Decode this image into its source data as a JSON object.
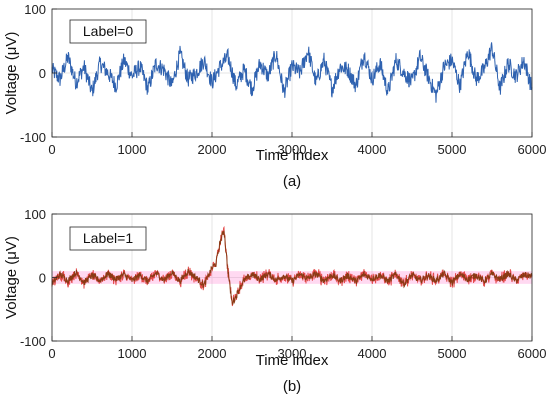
{
  "chart_data": [
    {
      "type": "line",
      "caption": "(a)",
      "legend_text": "Label=0",
      "xlabel": "Time index",
      "ylabel": "Voltage (μV)",
      "xlim": [
        0,
        6000
      ],
      "ylim": [
        -100,
        100
      ],
      "xticks": [
        0,
        1000,
        2000,
        3000,
        4000,
        5000,
        6000
      ],
      "yticks": [
        -100,
        0,
        100
      ],
      "grid": true,
      "legend_position": "top-left",
      "colors": {
        "line": "#2f62b0"
      },
      "series": [
        {
          "x": [
            0,
            100,
            200,
            300,
            400,
            500,
            600,
            700,
            800,
            900,
            1000,
            1100,
            1200,
            1300,
            1400,
            1500,
            1600,
            1700,
            1800,
            1900,
            2000,
            2100,
            2200,
            2300,
            2400,
            2500,
            2600,
            2700,
            2800,
            2900,
            3000,
            3100,
            3200,
            3300,
            3400,
            3500,
            3600,
            3700,
            3800,
            3900,
            4000,
            4100,
            4200,
            4300,
            4400,
            4500,
            4600,
            4700,
            4800,
            4900,
            5000,
            5100,
            5200,
            5300,
            5400,
            5500,
            5600,
            5700,
            5800,
            5900,
            6000
          ],
          "values": [
            5,
            -10,
            25,
            -15,
            10,
            -30,
            15,
            0,
            -20,
            20,
            -5,
            10,
            -25,
            15,
            5,
            -20,
            30,
            -10,
            0,
            20,
            -15,
            10,
            25,
            -20,
            5,
            -25,
            15,
            -5,
            30,
            -30,
            10,
            0,
            35,
            -15,
            20,
            -25,
            10,
            5,
            -20,
            30,
            -10,
            15,
            -30,
            20,
            0,
            -15,
            25,
            -5,
            -35,
            10,
            20,
            -20,
            35,
            -10,
            5,
            40,
            -25,
            15,
            -5,
            20,
            -25
          ]
        }
      ]
    },
    {
      "type": "line",
      "caption": "(b)",
      "legend_text": "Label=1",
      "xlabel": "Time index",
      "ylabel": "Voltage (μV)",
      "xlim": [
        0,
        6000
      ],
      "ylim": [
        -100,
        100
      ],
      "xticks": [
        0,
        1000,
        2000,
        3000,
        4000,
        5000,
        6000
      ],
      "yticks": [
        -100,
        0,
        100
      ],
      "grid": true,
      "legend_position": "top-left",
      "colors": {
        "line": "#8a3a14",
        "band": "#ff69c8",
        "noise": "#e03030"
      },
      "series": [
        {
          "x": [
            0,
            100,
            200,
            300,
            400,
            500,
            600,
            700,
            800,
            900,
            1000,
            1100,
            1200,
            1300,
            1400,
            1500,
            1600,
            1700,
            1800,
            1900,
            2000,
            2050,
            2100,
            2150,
            2200,
            2250,
            2300,
            2350,
            2400,
            2500,
            2600,
            2700,
            2800,
            2900,
            3000,
            3100,
            3200,
            3300,
            3400,
            3500,
            3600,
            3700,
            3800,
            3900,
            4000,
            4100,
            4200,
            4300,
            4400,
            4500,
            4600,
            4700,
            4800,
            4900,
            5000,
            5100,
            5200,
            5300,
            5400,
            5500,
            5600,
            5700,
            5800,
            5900,
            6000
          ],
          "values": [
            -10,
            5,
            -5,
            8,
            -8,
            3,
            -5,
            6,
            -3,
            5,
            -5,
            4,
            -6,
            7,
            -4,
            8,
            -6,
            10,
            0,
            -12,
            15,
            22,
            55,
            75,
            10,
            -40,
            -30,
            -15,
            -5,
            5,
            -3,
            6,
            -4,
            3,
            -6,
            5,
            -2,
            6,
            -5,
            4,
            -5,
            3,
            -6,
            5,
            -2,
            4,
            -6,
            5,
            -10,
            4,
            -5,
            3,
            -5,
            6,
            -8,
            5,
            -3,
            4,
            -6,
            5,
            -3,
            6,
            -5,
            4,
            2
          ]
        }
      ]
    }
  ]
}
